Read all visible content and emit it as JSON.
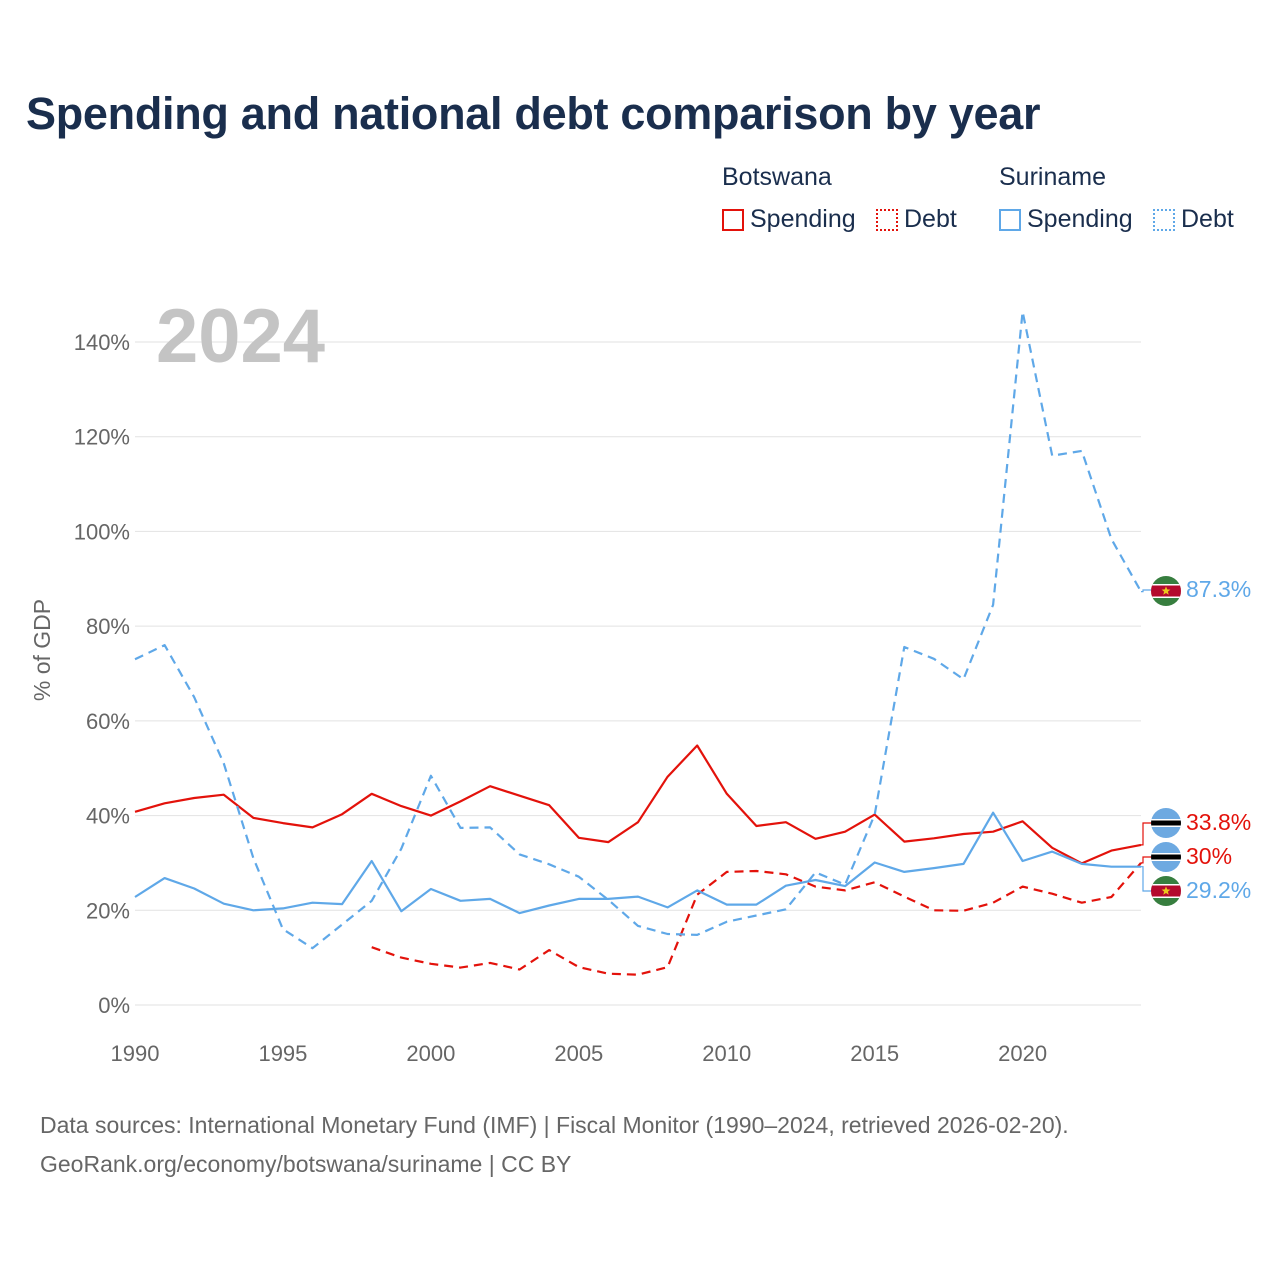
{
  "title": "Spending and national debt comparison by year",
  "legend": {
    "groups": [
      {
        "country": "Botswana",
        "color": "#e3120b",
        "items": [
          {
            "label": "Spending",
            "style": "solid"
          },
          {
            "label": "Debt",
            "style": "dotted"
          }
        ]
      },
      {
        "country": "Suriname",
        "color": "#5fa8e8",
        "items": [
          {
            "label": "Spending",
            "style": "solid"
          },
          {
            "label": "Debt",
            "style": "dotted"
          }
        ]
      }
    ]
  },
  "year_watermark": "2024",
  "end_labels": {
    "suriname_debt": "87.3%",
    "botswana_spending": "33.8%",
    "botswana_debt": "30%",
    "suriname_spending": "29.2%"
  },
  "flags": {
    "botswana": {
      "colors": [
        "#6da9e1",
        "#000000",
        "#ffffff"
      ]
    },
    "suriname": {
      "colors": [
        "#377e3f",
        "#b40a2d",
        "#ffffff",
        "#ecc81d"
      ]
    }
  },
  "sources": {
    "line1": "Data sources: International Monetary Fund (IMF) | Fiscal Monitor (1990–2024, retrieved 2026-02-20).",
    "line2": "GeoRank.org/economy/botswana/suriname | CC BY"
  },
  "chart_data": {
    "type": "line",
    "title": "Spending and national debt comparison by year",
    "xlabel": "",
    "ylabel": "% of GDP",
    "xlim": [
      1990,
      2024
    ],
    "ylim": [
      0,
      150
    ],
    "x_ticks": [
      1990,
      1995,
      2000,
      2005,
      2010,
      2015,
      2020
    ],
    "y_ticks": [
      0,
      20,
      40,
      60,
      80,
      100,
      120,
      140
    ],
    "y_tick_labels": [
      "0%",
      "20%",
      "40%",
      "60%",
      "80%",
      "100%",
      "120%",
      "140%"
    ],
    "x_tick_labels": [
      "1990",
      "1995",
      "2000",
      "2005",
      "2010",
      "2015",
      "2020"
    ],
    "grid": true,
    "series": [
      {
        "name": "Botswana Spending",
        "color": "#e3120b",
        "dash": "solid",
        "x": [
          1990,
          1991,
          1992,
          1993,
          1994,
          1995,
          1996,
          1997,
          1998,
          1999,
          2000,
          2001,
          2002,
          2003,
          2004,
          2005,
          2006,
          2007,
          2008,
          2009,
          2010,
          2011,
          2012,
          2013,
          2014,
          2015,
          2016,
          2017,
          2018,
          2019,
          2020,
          2021,
          2022,
          2023,
          2024
        ],
        "values": [
          40.8,
          42.6,
          43.7,
          44.4,
          39.5,
          38.4,
          37.5,
          40.3,
          44.6,
          42.0,
          40.0,
          43.0,
          46.2,
          44.2,
          42.2,
          35.3,
          34.4,
          38.6,
          48.2,
          54.8,
          44.6,
          37.8,
          38.6,
          35.1,
          36.6,
          40.2,
          34.5,
          35.2,
          36.1,
          36.6,
          38.8,
          33.2,
          29.9,
          32.6,
          33.8
        ]
      },
      {
        "name": "Botswana Debt",
        "color": "#e3120b",
        "dash": "dashed",
        "x": [
          1998,
          1999,
          2000,
          2001,
          2002,
          2003,
          2004,
          2005,
          2006,
          2007,
          2008,
          2009,
          2010,
          2011,
          2012,
          2013,
          2014,
          2015,
          2016,
          2017,
          2018,
          2019,
          2020,
          2021,
          2022,
          2023,
          2024
        ],
        "values": [
          12.2,
          10.0,
          8.7,
          7.9,
          8.9,
          7.5,
          11.6,
          8.0,
          6.6,
          6.4,
          8.0,
          23.3,
          28.1,
          28.3,
          27.6,
          25.0,
          24.2,
          25.9,
          22.9,
          20.0,
          19.9,
          21.6,
          25.0,
          23.5,
          21.6,
          22.8,
          30.0
        ]
      },
      {
        "name": "Suriname Spending",
        "color": "#5fa8e8",
        "dash": "solid",
        "x": [
          1990,
          1991,
          1992,
          1993,
          1994,
          1995,
          1996,
          1997,
          1998,
          1999,
          2000,
          2001,
          2002,
          2003,
          2004,
          2005,
          2006,
          2007,
          2008,
          2009,
          2010,
          2011,
          2012,
          2013,
          2014,
          2015,
          2016,
          2017,
          2018,
          2019,
          2020,
          2021,
          2022,
          2023,
          2024
        ],
        "values": [
          22.8,
          26.8,
          24.6,
          21.4,
          20.0,
          20.4,
          21.6,
          21.3,
          30.4,
          19.8,
          24.5,
          22.0,
          22.4,
          19.4,
          21.0,
          22.4,
          22.4,
          22.9,
          20.6,
          24.2,
          21.2,
          21.2,
          25.2,
          26.4,
          25.1,
          30.1,
          28.1,
          28.9,
          29.8,
          40.6,
          30.4,
          32.4,
          29.8,
          29.2,
          29.2
        ]
      },
      {
        "name": "Suriname Debt",
        "color": "#5fa8e8",
        "dash": "dashed",
        "x": [
          1990,
          1991,
          1992,
          1993,
          1994,
          1995,
          1996,
          1997,
          1998,
          1999,
          2000,
          2001,
          2002,
          2003,
          2004,
          2005,
          2006,
          2007,
          2008,
          2009,
          2010,
          2011,
          2012,
          2013,
          2014,
          2015,
          2016,
          2017,
          2018,
          2019,
          2020,
          2021,
          2022,
          2023,
          2024
        ],
        "values": [
          73.0,
          76.0,
          65.0,
          51.0,
          31.0,
          16.0,
          12.0,
          17.0,
          22.0,
          33.0,
          48.4,
          37.4,
          37.5,
          31.8,
          29.7,
          27.1,
          22.2,
          16.7,
          15.0,
          14.8,
          17.6,
          18.9,
          20.2,
          28.0,
          25.4,
          40.2,
          75.6,
          73.1,
          68.8,
          84.5,
          146.4,
          116.0,
          117.0,
          98.4,
          87.3
        ]
      }
    ]
  }
}
